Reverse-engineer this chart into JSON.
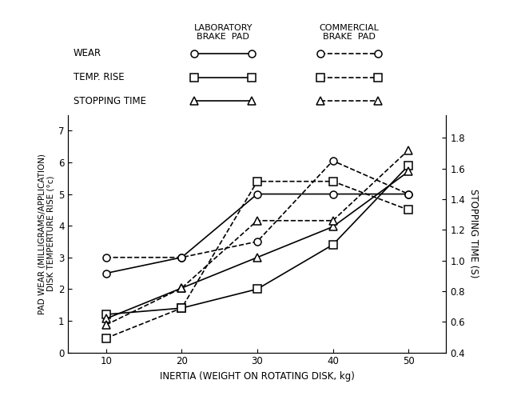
{
  "x": [
    10,
    20,
    30,
    40,
    50
  ],
  "lab_wear": [
    2.5,
    3.0,
    5.0,
    5.0,
    5.0
  ],
  "lab_temp": [
    1.2,
    1.4,
    2.0,
    3.4,
    5.9
  ],
  "lab_stop": [
    0.62,
    0.82,
    1.02,
    1.22,
    1.58
  ],
  "com_wear": [
    3.0,
    3.0,
    3.5,
    6.05,
    5.0
  ],
  "com_temp": [
    0.45,
    1.4,
    5.4,
    5.4,
    4.5
  ],
  "com_stop": [
    0.58,
    0.82,
    1.26,
    1.26,
    1.72
  ],
  "left_ylim": [
    0,
    7.5
  ],
  "left_yticks": [
    0,
    1,
    2,
    3,
    4,
    5,
    6,
    7
  ],
  "right_ylim": [
    0.4,
    1.95
  ],
  "right_yticks": [
    0.4,
    0.6,
    0.8,
    1.0,
    1.2,
    1.4,
    1.6,
    1.8
  ],
  "xlabel": "INERTIA (WEIGHT ON ROTATING DISK, kg)",
  "ylabel_left": "PAD WEAR (MILLIGRAMS/APPLICATION)\nDISK TEMPERTURE RISE (°c)",
  "ylabel_right": "STOPPING TIME (S)",
  "xticks": [
    10,
    20,
    30,
    40,
    50
  ],
  "lab_header": "LABORATORY\nBRAKE  PAD",
  "com_header": "COMMERCIAL\nBRAKE  PAD",
  "legend_labels": [
    "WEAR",
    "TEMP. RISE",
    "STOPPING TIME"
  ],
  "legend_markers": [
    "o",
    "s",
    "^"
  ],
  "lw": 1.2,
  "ms": 6.5
}
